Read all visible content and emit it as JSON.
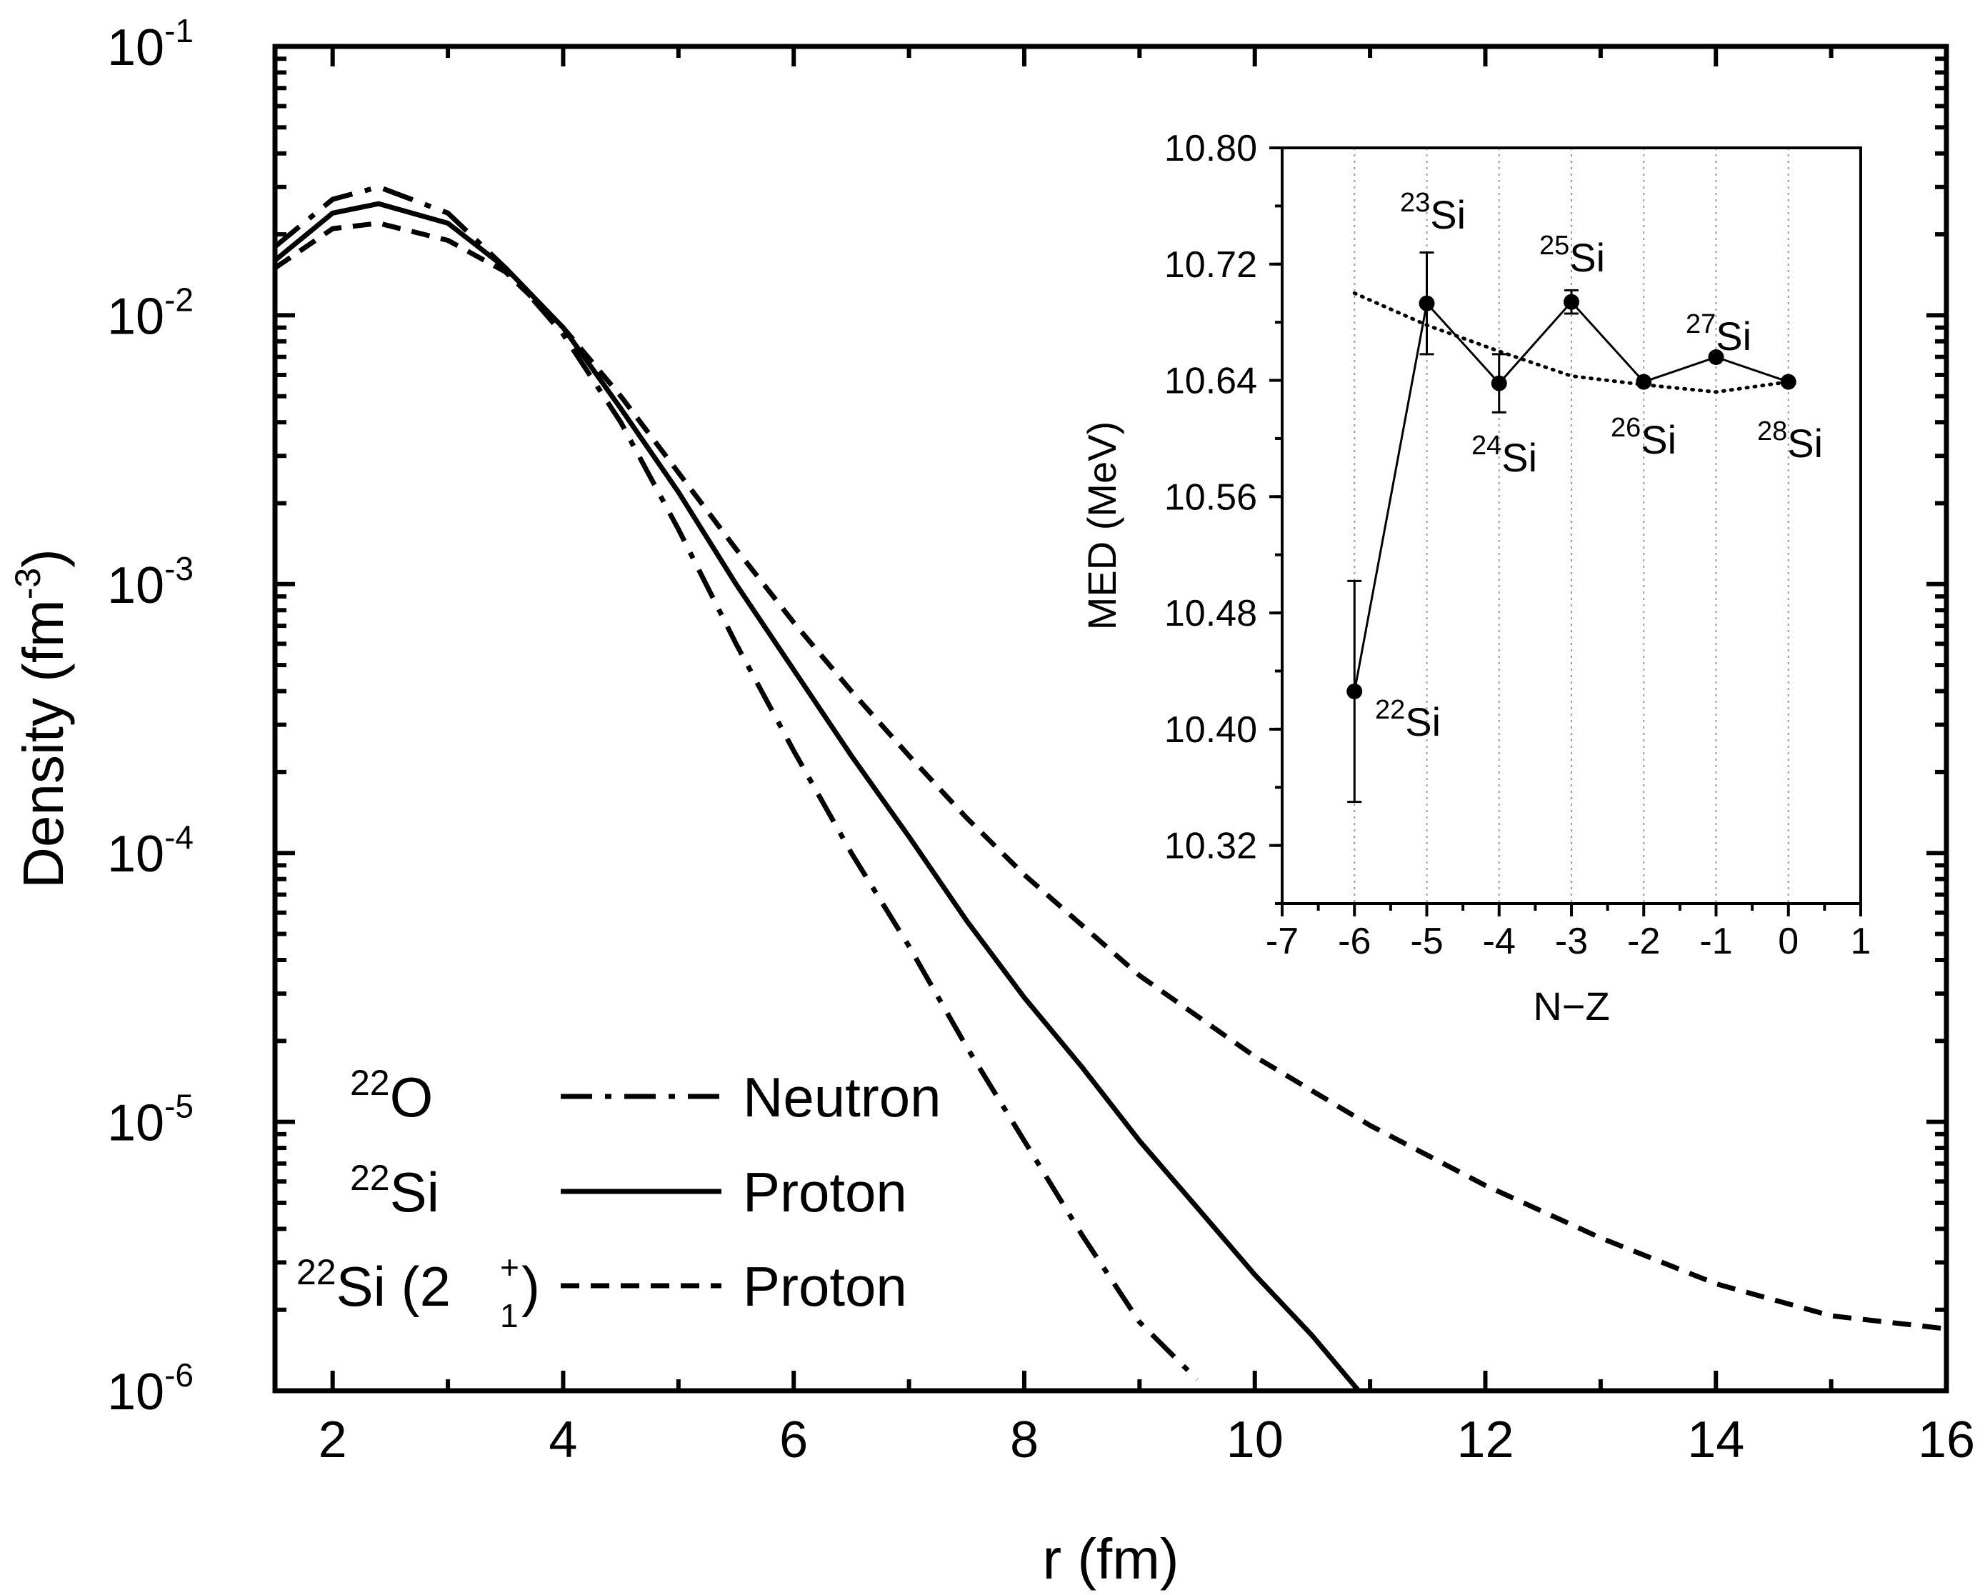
{
  "chart_data": [
    {
      "type": "line",
      "xlabel": "r (fm)",
      "ylabel": "Density",
      "ylabel_unit_base": "fm",
      "ylabel_unit_exp": "-3",
      "xlim": [
        1.5,
        16
      ],
      "ylim": [
        1e-06,
        0.1
      ],
      "yscale": "log",
      "x_ticks": [
        2,
        4,
        6,
        8,
        10,
        12,
        14,
        16
      ],
      "y_ticks": [
        {
          "value": 0.1,
          "base": "10",
          "exp": "-1"
        },
        {
          "value": 0.01,
          "base": "10",
          "exp": "-2"
        },
        {
          "value": 0.001,
          "base": "10",
          "exp": "-3"
        },
        {
          "value": 0.0001,
          "base": "10",
          "exp": "-4"
        },
        {
          "value": 1e-05,
          "base": "10",
          "exp": "-5"
        },
        {
          "value": 1e-06,
          "base": "10",
          "exp": "-6"
        }
      ],
      "legend_position": "bottom-left",
      "series": [
        {
          "legend_nucleus_mass": "22",
          "legend_nucleus_symbol": "O",
          "legend_state_sup": "",
          "legend_state_sub": "",
          "name": "Neutron",
          "style": "dash-dot",
          "color": "#000000",
          "x": [
            1.5,
            2.0,
            2.4,
            3.0,
            3.5,
            4.0,
            4.5,
            5.0,
            5.5,
            6.0,
            6.5,
            7.0,
            7.5,
            8.0,
            8.5,
            9.0,
            9.5
          ],
          "y": [
            0.018,
            0.027,
            0.03,
            0.024,
            0.015,
            0.0085,
            0.004,
            0.0016,
            0.0006,
            0.00024,
            0.0001,
            4.5e-05,
            1.9e-05,
            8.5e-06,
            3.8e-06,
            1.8e-06,
            1.1e-06
          ]
        },
        {
          "legend_nucleus_mass": "22",
          "legend_nucleus_symbol": "Si",
          "legend_state_sup": "",
          "legend_state_sub": "",
          "name": "Proton",
          "style": "solid",
          "color": "#000000",
          "x": [
            1.5,
            2.0,
            2.4,
            3.0,
            3.5,
            4.0,
            4.5,
            5.0,
            5.5,
            6.0,
            6.5,
            7.0,
            7.5,
            8.0,
            8.5,
            9.0,
            9.5,
            10.0,
            10.5,
            10.9
          ],
          "y": [
            0.016,
            0.024,
            0.026,
            0.022,
            0.015,
            0.009,
            0.0045,
            0.0022,
            0.001,
            0.00048,
            0.00023,
            0.000115,
            5.6e-05,
            2.9e-05,
            1.6e-05,
            8.5e-06,
            4.8e-06,
            2.7e-06,
            1.6e-06,
            1e-06
          ]
        },
        {
          "legend_nucleus_mass": "22",
          "legend_nucleus_symbol": "Si (2",
          "legend_state_sup": "+",
          "legend_state_sub": "1",
          "name": "Proton",
          "style": "dashed",
          "color": "#000000",
          "x": [
            1.5,
            2.0,
            2.4,
            3.0,
            3.5,
            4.0,
            4.5,
            5.0,
            5.5,
            6.0,
            6.5,
            7.0,
            7.5,
            8.0,
            9.0,
            10.0,
            11.0,
            12.0,
            13.0,
            14.0,
            15.0,
            16.0
          ],
          "y": [
            0.015,
            0.021,
            0.022,
            0.019,
            0.0145,
            0.009,
            0.005,
            0.0026,
            0.00135,
            0.00072,
            0.0004,
            0.00023,
            0.000135,
            8.3e-05,
            3.5e-05,
            1.75e-05,
            9.7e-06,
            5.8e-06,
            3.7e-06,
            2.5e-06,
            1.9e-06,
            1.7e-06
          ]
        }
      ]
    },
    {
      "type": "scatter",
      "xlabel": "N−Z",
      "ylabel": "MED (MeV)",
      "xlim": [
        -7,
        1
      ],
      "ylim": [
        10.28,
        10.8
      ],
      "x_ticks": [
        -7,
        -6,
        -5,
        -4,
        -3,
        -2,
        -1,
        0,
        1
      ],
      "x_tick_labels": [
        "-7",
        "-6",
        "-5",
        "-4",
        "-3",
        "-2",
        "-1",
        "0",
        "1"
      ],
      "y_ticks": [
        10.32,
        10.4,
        10.48,
        10.56,
        10.64,
        10.72,
        10.8
      ],
      "y_tick_labels": [
        "10.32",
        "10.40",
        "10.48",
        "10.56",
        "10.64",
        "10.72",
        "10.80"
      ],
      "grid": "vertical-dotted",
      "series": [
        {
          "style": "solid-markers",
          "x": [
            -6,
            -5,
            -4,
            -3,
            -2,
            -1,
            0
          ],
          "y": [
            10.426,
            10.693,
            10.638,
            10.694,
            10.639,
            10.656,
            10.639
          ],
          "yerr": [
            0.076,
            0.035,
            0.02,
            0.008,
            0,
            0,
            0
          ]
        },
        {
          "style": "dotted",
          "x": [
            -6,
            -5,
            -4,
            -3,
            -2,
            -1,
            0
          ],
          "y": [
            10.7,
            10.678,
            10.66,
            10.643,
            10.637,
            10.632,
            10.639
          ]
        }
      ],
      "annotations": [
        {
          "mass": "22",
          "symbol": "Si"
        },
        {
          "mass": "23",
          "symbol": "Si"
        },
        {
          "mass": "24",
          "symbol": "Si"
        },
        {
          "mass": "25",
          "symbol": "Si"
        },
        {
          "mass": "26",
          "symbol": "Si"
        },
        {
          "mass": "27",
          "symbol": "Si"
        },
        {
          "mass": "28",
          "symbol": "Si"
        }
      ]
    }
  ]
}
